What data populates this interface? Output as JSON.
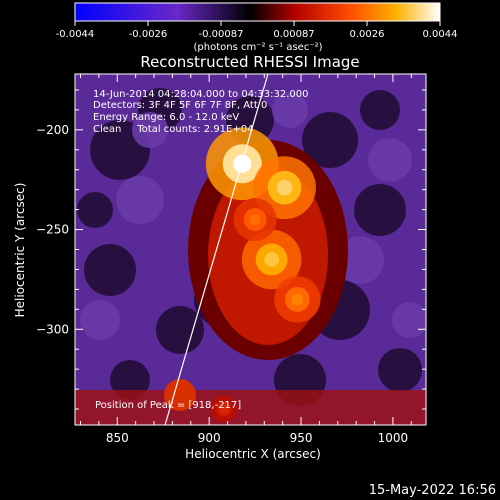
{
  "chart_data": {
    "type": "heatmap",
    "title": "Reconstructed RHESSI Image",
    "xlabel": "Heliocentric X (arcsec)",
    "ylabel": "Heliocentric Y (arcsec)",
    "xlim": [
      827,
      1018
    ],
    "ylim": [
      -348,
      -172
    ],
    "x_ticks": [
      850,
      900,
      950,
      1000
    ],
    "y_ticks": [
      -200,
      -250,
      -300
    ],
    "colorbar": {
      "label": "(photons cm⁻² s⁻¹ asec⁻²)",
      "tick_labels": [
        "-0.0044",
        "-0.0026",
        "-0.00087",
        "0.00087",
        "0.0026",
        "0.0044"
      ],
      "range": [
        -0.0044,
        0.0044
      ]
    },
    "annotations": [
      "14-Jun-2014 04:28:04.000 to 04:33:32.000",
      "Detectors: 3F 4F 5F 6F 7F 8F, Att 0",
      "Energy Range: 6.0 - 12.0 keV",
      "Clean     Total counts: 2.91E+04"
    ],
    "peak_label": "Position of Peak = [918,-217]",
    "sources": [
      {
        "x": 918,
        "y": -217,
        "value": 0.0044
      },
      {
        "x": 941,
        "y": -229,
        "value": 0.0038
      },
      {
        "x": 934,
        "y": -265,
        "value": 0.0036
      },
      {
        "x": 948,
        "y": -285,
        "value": 0.0028
      },
      {
        "x": 925,
        "y": -245,
        "value": 0.0026
      },
      {
        "x": 908,
        "y": -340,
        "value": 0.0016
      }
    ],
    "limb_line": [
      [
        876,
        -348
      ],
      [
        932,
        -172
      ]
    ]
  },
  "footer_date": "15-May-2022 16:56"
}
